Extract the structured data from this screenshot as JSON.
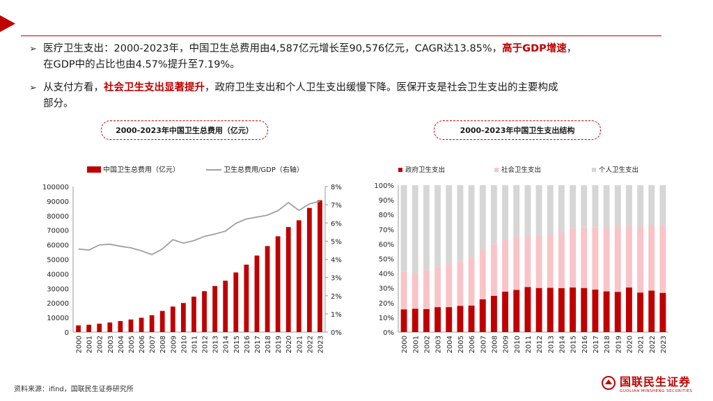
{
  "bullets": [
    {
      "segments": [
        {
          "text": "医疗卫生支出：2000-2023年，中国卫生总费用由4,587亿元增长至90,576亿元，CAGR达13.85%，",
          "emph": false
        },
        {
          "text": "高于GDP增速",
          "emph": true
        },
        {
          "text": "，",
          "emph": false
        }
      ],
      "line2": "在GDP中的占比也由4.57%提升至7.19%。"
    },
    {
      "segments": [
        {
          "text": "从支付方看，",
          "emph": false
        },
        {
          "text": "社会卫生支出显著提升",
          "emph": true
        },
        {
          "text": "，政府卫生支出和个人卫生支出缓慢下降。医保开支是社会卫生支出的主要构成",
          "emph": false
        }
      ],
      "line2": "部分。"
    }
  ],
  "left_title": "2000-2023年中国卫生总费用（亿元）",
  "right_title": "2000-2023年中国卫生支出结构",
  "source": "资料来源：ifind，国联民生证券研究所",
  "logo": {
    "name": "国联民生证券",
    "sub": "GUOLIAN MINSHENG SECURITIES"
  },
  "colors": {
    "accent": "#c00000",
    "light_red": "#f8c4c8",
    "grey": "#d6d6d6",
    "line": "#a0a0a0"
  },
  "chart_data": [
    {
      "type": "bar",
      "title": "2000-2023年中国卫生总费用（亿元）",
      "categories": [
        "2000",
        "2001",
        "2002",
        "2003",
        "2004",
        "2005",
        "2006",
        "2007",
        "2008",
        "2009",
        "2010",
        "2011",
        "2012",
        "2013",
        "2014",
        "2015",
        "2016",
        "2017",
        "2018",
        "2019",
        "2020",
        "2021",
        "2022",
        "2023"
      ],
      "series": [
        {
          "name": "中国卫生总费用（亿元）",
          "kind": "bar",
          "axis": "left",
          "values": [
            4587,
            5026,
            5791,
            6584,
            7590,
            8660,
            9843,
            11574,
            14535,
            17542,
            19980,
            24346,
            28119,
            31669,
            35312,
            40975,
            46345,
            52598,
            59122,
            65841,
            72175,
            76845,
            85327,
            90576
          ]
        },
        {
          "name": "卫生总费用/GDP（右轴）",
          "kind": "line",
          "axis": "right",
          "values": [
            4.57,
            4.51,
            4.79,
            4.83,
            4.72,
            4.63,
            4.47,
            4.26,
            4.57,
            5.08,
            4.89,
            5.03,
            5.26,
            5.39,
            5.55,
            5.98,
            6.22,
            6.32,
            6.43,
            6.67,
            7.12,
            6.69,
            7.05,
            7.19
          ]
        }
      ],
      "ylim_left": [
        0,
        100000
      ],
      "yticks_left": [
        "0",
        "10000",
        "20000",
        "30000",
        "40000",
        "50000",
        "60000",
        "70000",
        "80000",
        "90000",
        "100000"
      ],
      "ylim_right": [
        0,
        8
      ],
      "yticks_right": [
        "0%",
        "1%",
        "2%",
        "3%",
        "4%",
        "5%",
        "6%",
        "7%",
        "8%"
      ],
      "legend_position": "top"
    },
    {
      "type": "bar",
      "stacked": "percent",
      "title": "2000-2023年中国卫生支出结构",
      "categories": [
        "2000",
        "2001",
        "2002",
        "2003",
        "2004",
        "2005",
        "2006",
        "2007",
        "2008",
        "2009",
        "2010",
        "2011",
        "2012",
        "2013",
        "2014",
        "2015",
        "2016",
        "2017",
        "2018",
        "2019",
        "2020",
        "2021",
        "2022",
        "2023"
      ],
      "series": [
        {
          "name": "政府卫生支出",
          "values": [
            15.5,
            15.9,
            15.7,
            17.0,
            17.0,
            17.9,
            18.1,
            22.3,
            24.7,
            27.5,
            28.7,
            30.7,
            30.0,
            30.1,
            29.9,
            30.4,
            30.0,
            28.9,
            27.7,
            27.4,
            30.4,
            26.9,
            28.2,
            26.7
          ]
        },
        {
          "name": "社会卫生支出",
          "values": [
            25.6,
            24.1,
            26.6,
            27.2,
            29.3,
            29.9,
            32.6,
            33.6,
            35.1,
            35.1,
            36.0,
            34.6,
            35.7,
            36.0,
            38.1,
            40.3,
            41.2,
            42.3,
            43.7,
            44.9,
            41.9,
            44.9,
            44.8,
            46.0
          ]
        },
        {
          "name": "个人卫生支出",
          "values": [
            58.9,
            60.0,
            57.7,
            55.8,
            53.7,
            52.2,
            49.3,
            44.1,
            40.2,
            37.4,
            35.3,
            34.7,
            34.3,
            33.9,
            32.0,
            29.3,
            28.8,
            28.8,
            28.6,
            27.7,
            27.7,
            28.2,
            27.0,
            27.3
          ]
        }
      ],
      "ylim": [
        0,
        100
      ],
      "yticks": [
        "0%",
        "10%",
        "20%",
        "30%",
        "40%",
        "50%",
        "60%",
        "70%",
        "80%",
        "90%",
        "100%"
      ],
      "legend_position": "top"
    }
  ]
}
